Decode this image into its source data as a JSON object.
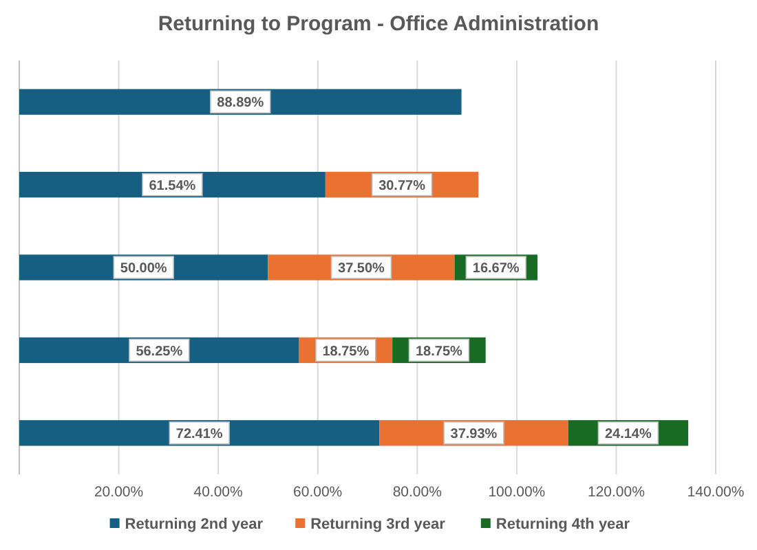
{
  "chart_data": {
    "type": "bar",
    "title": "Returning to Program - Office Administration",
    "orientation": "horizontal",
    "stacked": true,
    "categories": [
      null,
      null,
      null,
      null,
      null
    ],
    "series": [
      {
        "name": "Returning 2nd year",
        "color": "#156082",
        "values": [
          88.89,
          61.54,
          50.0,
          56.25,
          72.41
        ],
        "value_labels": [
          "88.89%",
          "61.54%",
          "50.00%",
          "56.25%",
          "72.41%"
        ]
      },
      {
        "name": "Returning 3rd year",
        "color": "#e97132",
        "values": [
          null,
          30.77,
          37.5,
          18.75,
          37.93
        ],
        "value_labels": [
          null,
          "30.77%",
          "37.50%",
          "18.75%",
          "37.93%"
        ]
      },
      {
        "name": "Returning 4th year",
        "color": "#196b24",
        "values": [
          null,
          null,
          16.67,
          18.75,
          24.14
        ],
        "value_labels": [
          null,
          null,
          "16.67%",
          "18.75%",
          "24.14%"
        ]
      }
    ],
    "xlim": [
      0,
      140
    ],
    "xticks": [
      {
        "value": 20,
        "label": "20.00%"
      },
      {
        "value": 40,
        "label": "40.00%"
      },
      {
        "value": 60,
        "label": "60.00%"
      },
      {
        "value": 80,
        "label": "80.00%"
      },
      {
        "value": 100,
        "label": "100.00%"
      },
      {
        "value": 120,
        "label": "120.00%"
      },
      {
        "value": 140,
        "label": "140.00%"
      }
    ],
    "grid": "x",
    "legend": "bottom"
  }
}
